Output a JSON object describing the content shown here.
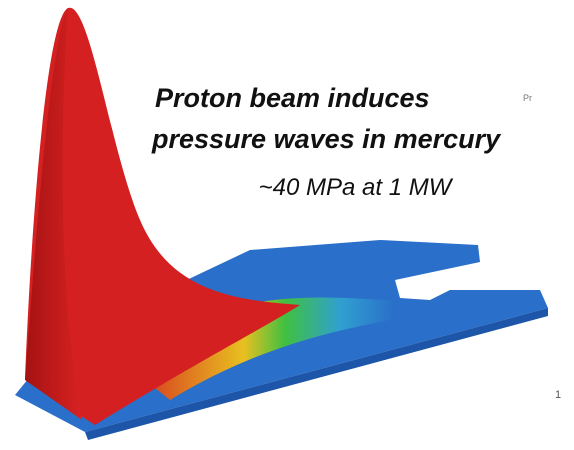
{
  "caption": {
    "line1": "Proton beam induces",
    "line2": "pressure waves in mercury",
    "line3": "~40 MPa at 1 MW"
  },
  "fragments": {
    "top_right": "Pr",
    "bottom_right": "1"
  }
}
